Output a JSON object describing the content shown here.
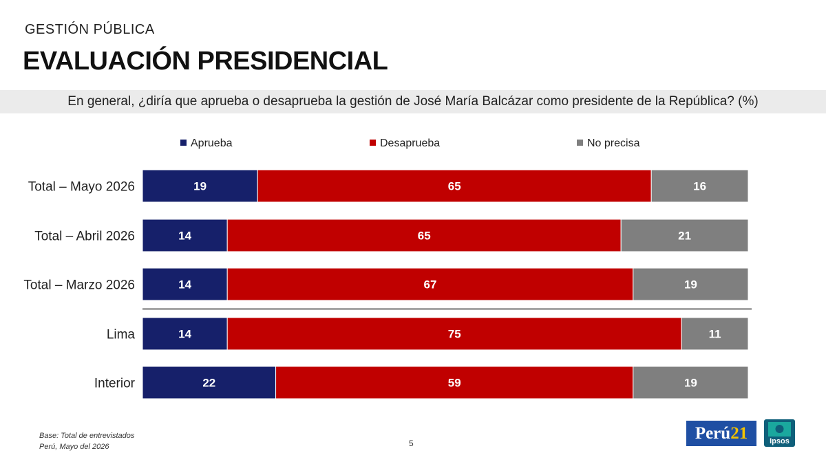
{
  "header": {
    "supertitle": "GESTIÓN PÚBLICA",
    "title": "EVALUACIÓN PRESIDENCIAL",
    "question": "En general, ¿diría que aprueba o desaprueba la gestión de José María Balcázar  como presidente de la República? (%)"
  },
  "chart_data": {
    "type": "bar",
    "orientation": "horizontal",
    "stacked": true,
    "percent": true,
    "categories": [
      "Total – Mayo 2026",
      "Total – Abril 2026",
      "Total – Marzo 2026",
      "Lima",
      "Interior"
    ],
    "series": [
      {
        "name": "Aprueba",
        "color": "#16206a",
        "values": [
          19,
          14,
          14,
          14,
          22
        ]
      },
      {
        "name": "Desaprueba",
        "color": "#c00000",
        "values": [
          65,
          65,
          67,
          75,
          59
        ]
      },
      {
        "name": "No precisa",
        "color": "#7f7f7f",
        "values": [
          16,
          21,
          19,
          11,
          19
        ]
      }
    ],
    "separator_after_index": 2,
    "legend_position": "top",
    "grid": false
  },
  "footer": {
    "base_line1": "Base: Total de entrevistados",
    "base_line2": "Perú, Mayo del 2026",
    "page_number": "5",
    "logo_peru21_text": "Perú",
    "logo_peru21_number": "21",
    "logo_ipsos_text": "Ipsos"
  }
}
